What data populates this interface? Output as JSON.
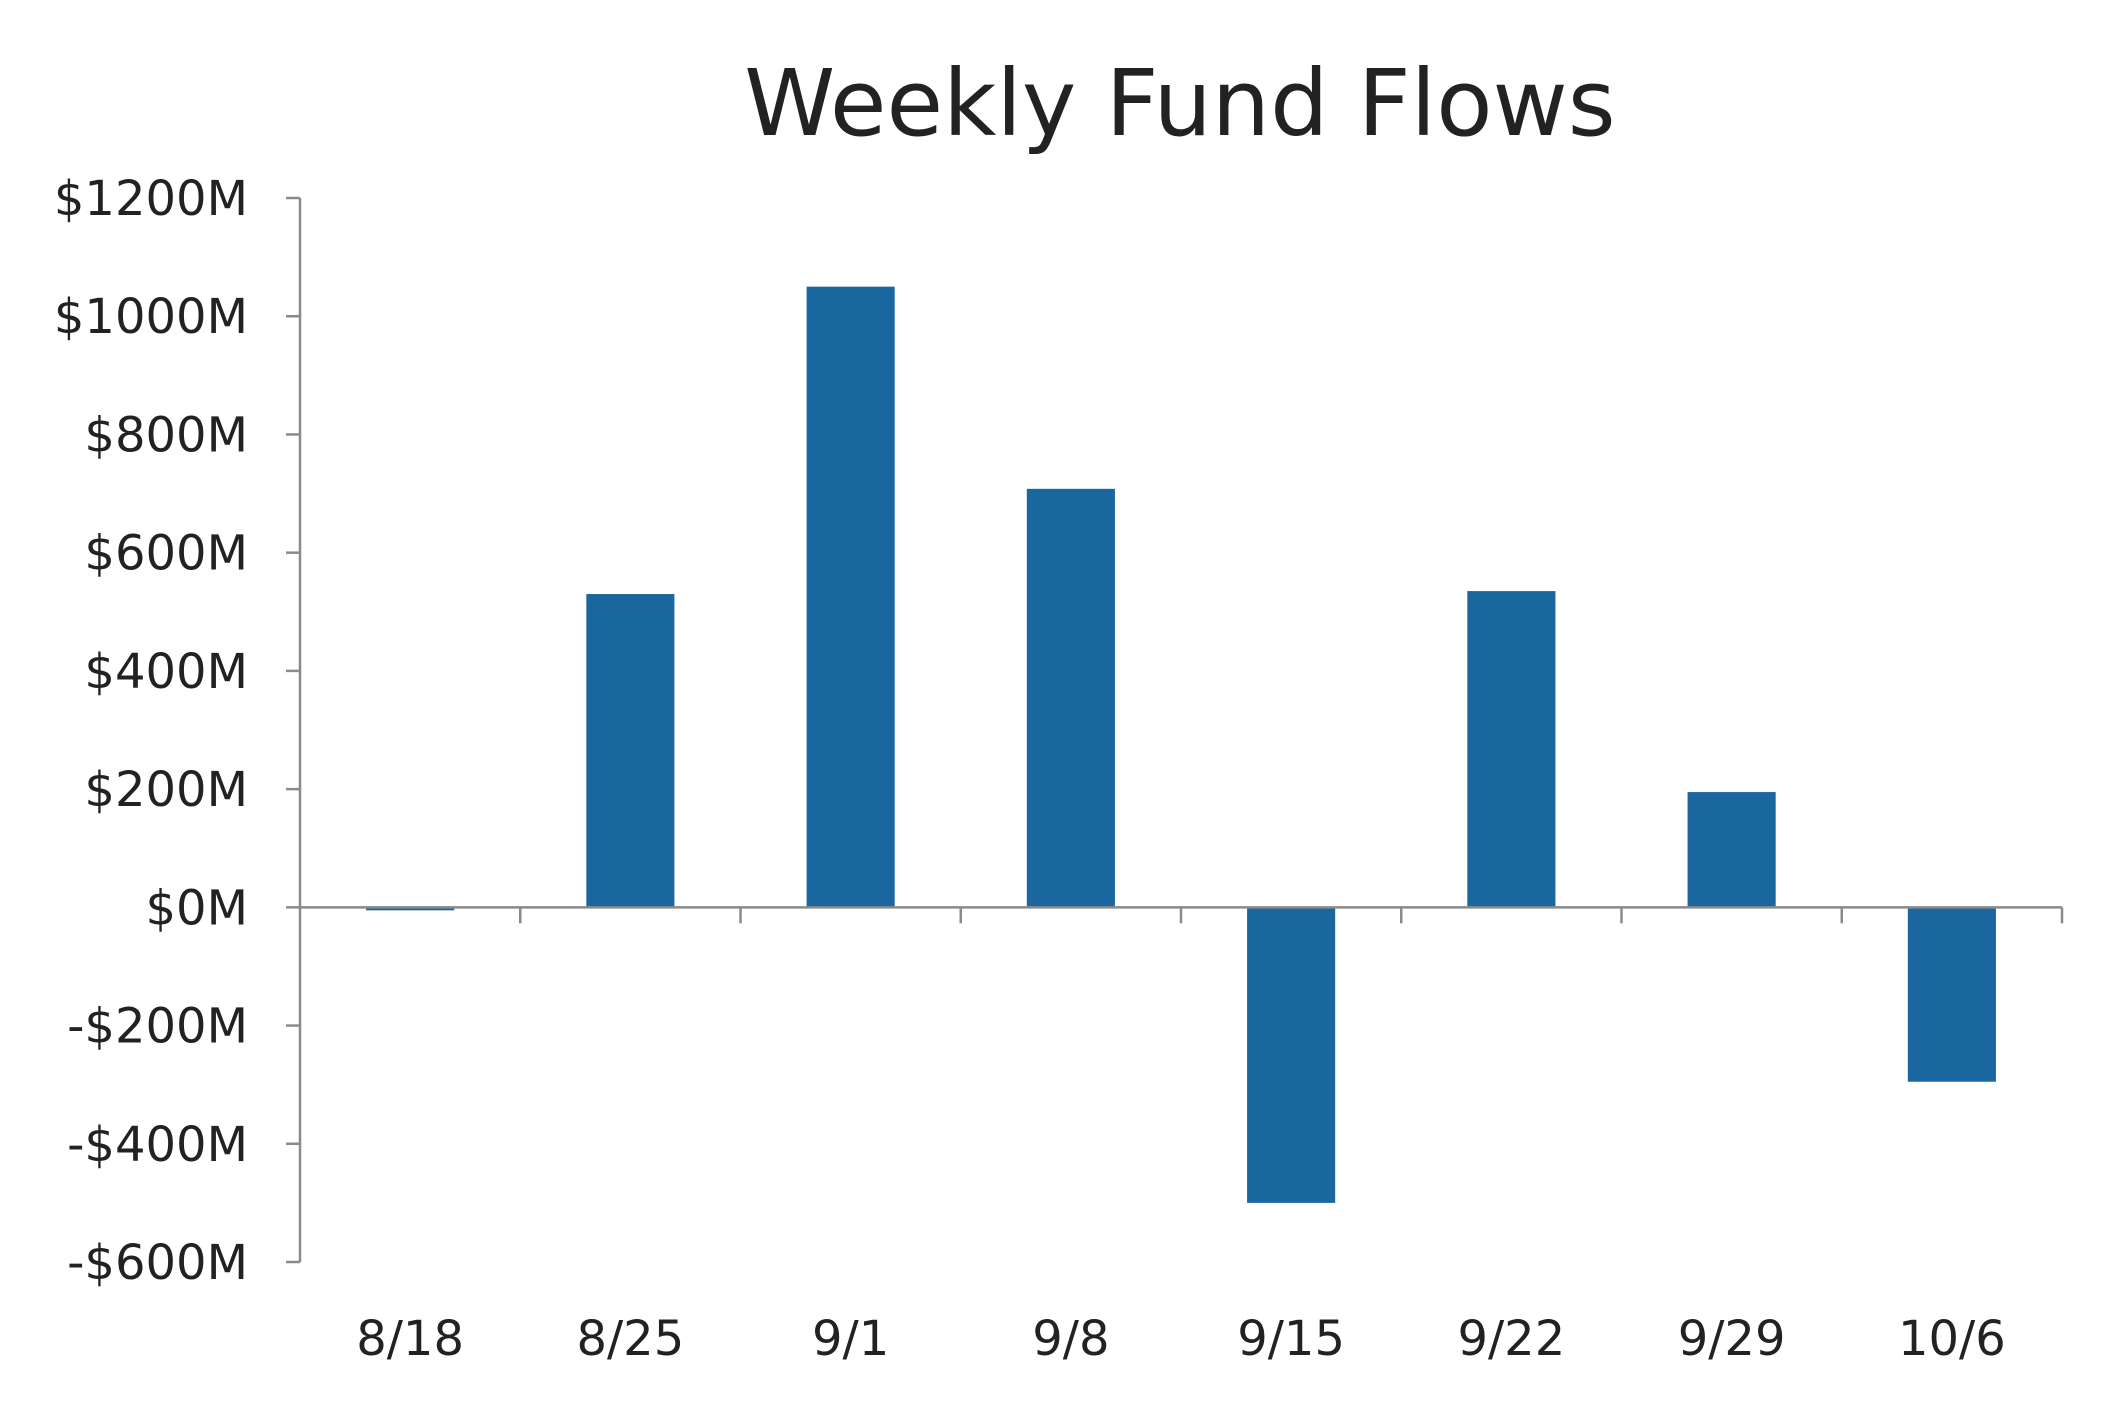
{
  "chart_data": {
    "type": "bar",
    "title": "Weekly Fund Flows",
    "xlabel": "",
    "ylabel": "",
    "categories": [
      "8/18",
      "8/25",
      "9/1",
      "9/8",
      "9/15",
      "9/22",
      "9/29",
      "10/6"
    ],
    "values": [
      -5,
      530,
      1050,
      708,
      -500,
      535,
      195,
      -295
    ],
    "ylim": [
      -600,
      1200
    ],
    "yticks": [
      1200,
      1000,
      800,
      600,
      400,
      200,
      0,
      -200,
      -400,
      -600
    ],
    "ytick_labels": [
      "$1200M",
      "$1000M",
      "$800M",
      "$600M",
      "$400M",
      "$200M",
      "$0M",
      "-$200M",
      "-$400M",
      "-$600M"
    ],
    "bar_color": "#1a67a0",
    "axis_color": "#8a8a8a",
    "grid": false,
    "legend": "none"
  }
}
